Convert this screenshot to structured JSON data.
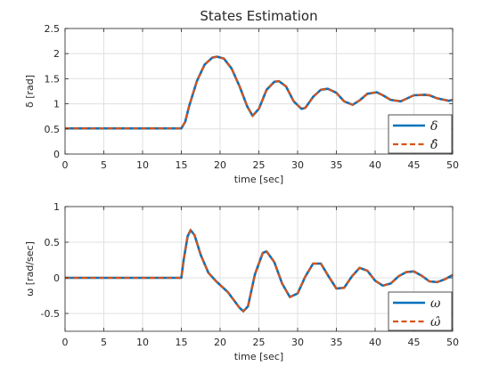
{
  "chart_data": {
    "title": "States Estimation",
    "colors": {
      "actual": "#0072BD",
      "estimate": "#D95319"
    },
    "plots": [
      {
        "type": "line",
        "xlabel": "time [sec]",
        "ylabel": "δ [rad]",
        "xlim": [
          0,
          50
        ],
        "ylim": [
          0,
          2.5
        ],
        "xticks": [
          "0",
          "5",
          "10",
          "15",
          "20",
          "25",
          "30",
          "35",
          "40",
          "45",
          "50"
        ],
        "yticks": [
          "0",
          "0.5",
          "1",
          "1.5",
          "2",
          "2.5"
        ],
        "grid": true,
        "legend_position": "bottom-right",
        "series": [
          {
            "name": "δ",
            "style": "solid"
          },
          {
            "name": "δ̂",
            "style": "dashed"
          }
        ],
        "x": [
          0,
          15,
          15.5,
          16,
          17,
          18,
          19,
          19.6,
          20.5,
          21.5,
          22.5,
          23.5,
          24.2,
          25,
          26,
          27,
          27.6,
          28.5,
          29.5,
          30.5,
          31,
          32,
          33,
          33.9,
          35,
          36,
          37.1,
          38,
          39,
          40.2,
          41,
          42,
          43.3,
          44,
          45,
          46.4,
          47,
          48,
          49.5,
          50
        ],
        "values": [
          0.51,
          0.51,
          0.64,
          0.95,
          1.45,
          1.78,
          1.92,
          1.94,
          1.9,
          1.7,
          1.35,
          0.95,
          0.76,
          0.9,
          1.28,
          1.44,
          1.45,
          1.35,
          1.05,
          0.9,
          0.92,
          1.14,
          1.28,
          1.3,
          1.22,
          1.05,
          0.98,
          1.07,
          1.2,
          1.23,
          1.17,
          1.08,
          1.05,
          1.1,
          1.17,
          1.18,
          1.17,
          1.11,
          1.06,
          1.08
        ]
      },
      {
        "type": "line",
        "xlabel": "time [sec]",
        "ylabel": "ω [rad/sec]",
        "xlim": [
          0,
          50
        ],
        "ylim": [
          -0.75,
          1
        ],
        "xticks": [
          "0",
          "5",
          "10",
          "15",
          "20",
          "25",
          "30",
          "35",
          "40",
          "45",
          "50"
        ],
        "yticks": [
          "-0.5",
          "0",
          "0.5",
          "1"
        ],
        "grid": true,
        "legend_position": "bottom-right",
        "series": [
          {
            "name": "ω",
            "style": "solid"
          },
          {
            "name": "ω̂",
            "style": "dashed"
          }
        ],
        "x": [
          0,
          15,
          15.3,
          15.8,
          16.2,
          16.7,
          17.5,
          18.5,
          19.5,
          21,
          22.5,
          23,
          23.6,
          24.5,
          25.5,
          26,
          27,
          28,
          29,
          30,
          31,
          32,
          33,
          34,
          35,
          36,
          37,
          38,
          39,
          40,
          41,
          42,
          43,
          44,
          45,
          46,
          47,
          48,
          49,
          50
        ],
        "values": [
          0,
          0,
          0.25,
          0.58,
          0.67,
          0.6,
          0.32,
          0.07,
          -0.05,
          -0.2,
          -0.42,
          -0.47,
          -0.4,
          0.05,
          0.35,
          0.37,
          0.22,
          -0.08,
          -0.27,
          -0.22,
          0.02,
          0.2,
          0.2,
          0.02,
          -0.15,
          -0.14,
          0.02,
          0.14,
          0.1,
          -0.04,
          -0.11,
          -0.08,
          0.02,
          0.08,
          0.09,
          0.03,
          -0.05,
          -0.06,
          -0.02,
          0.04
        ]
      }
    ]
  }
}
